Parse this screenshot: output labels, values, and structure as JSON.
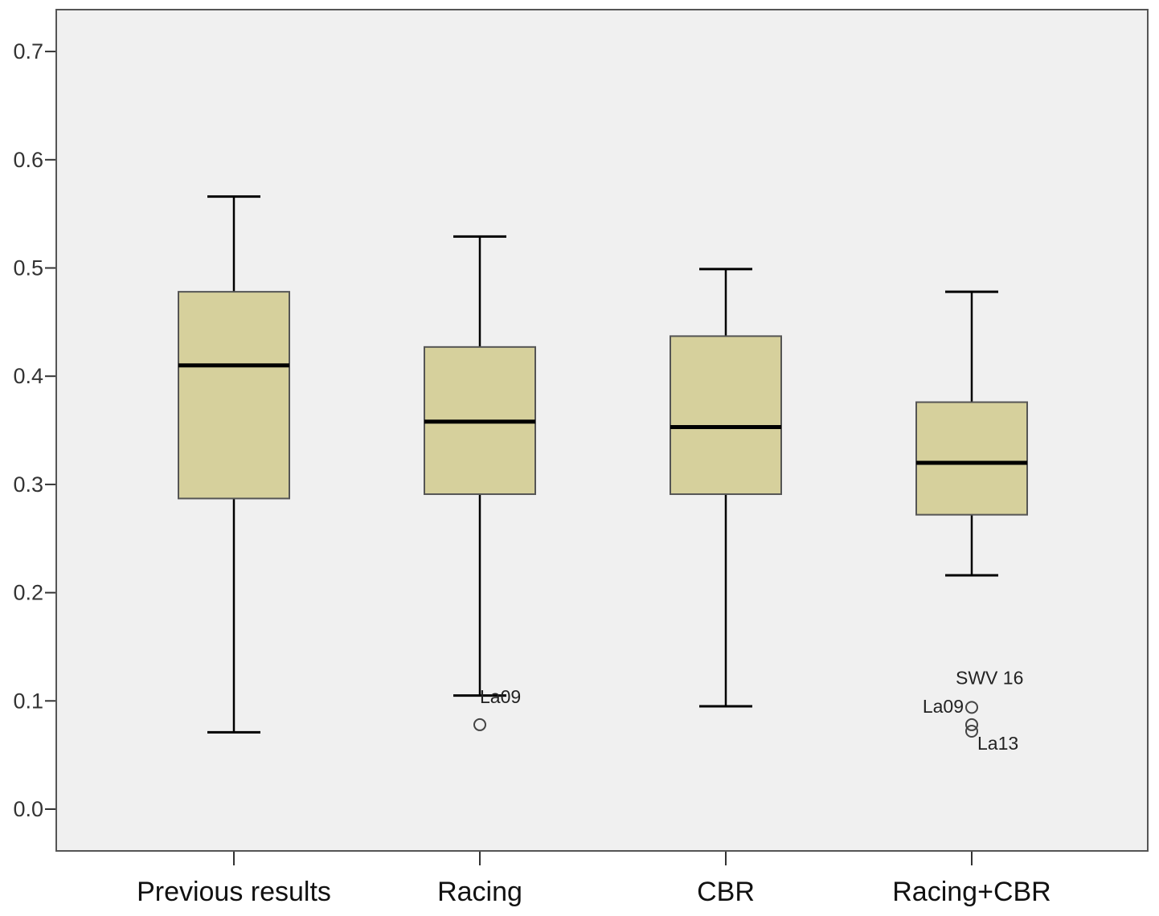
{
  "chart_data": {
    "type": "boxplot",
    "title": "",
    "xlabel": "",
    "ylabel": "",
    "ylim": [
      -0.04,
      0.74
    ],
    "yticks": [
      0.0,
      0.1,
      0.2,
      0.3,
      0.4,
      0.5,
      0.6,
      0.7
    ],
    "ytick_labels": [
      "0.0",
      "0.1",
      "0.2",
      "0.3",
      "0.4",
      "0.5",
      "0.6",
      "0.7"
    ],
    "categories": [
      "Previous results",
      "Racing",
      "CBR",
      "Racing+CBR"
    ],
    "boxes": [
      {
        "name": "Previous results",
        "whisker_low": 0.071,
        "q1": 0.287,
        "median": 0.41,
        "q3": 0.478,
        "whisker_high": 0.566,
        "outliers": []
      },
      {
        "name": "Racing",
        "whisker_low": 0.105,
        "q1": 0.291,
        "median": 0.358,
        "q3": 0.427,
        "whisker_high": 0.529,
        "outliers": [
          {
            "value": 0.078,
            "label": "La09"
          }
        ]
      },
      {
        "name": "CBR",
        "whisker_low": 0.095,
        "q1": 0.291,
        "median": 0.353,
        "q3": 0.437,
        "whisker_high": 0.499,
        "outliers": []
      },
      {
        "name": "Racing+CBR",
        "whisker_low": 0.216,
        "q1": 0.272,
        "median": 0.32,
        "q3": 0.376,
        "whisker_high": 0.478,
        "outliers": [
          {
            "value": 0.094,
            "label": "SWV 16"
          },
          {
            "value": 0.078,
            "label": "La09"
          },
          {
            "value": 0.072,
            "label": "La13"
          }
        ]
      }
    ],
    "colors": {
      "box_fill": "#d6d09c",
      "box_stroke": "#555555",
      "median": "#000000",
      "whisker": "#000000",
      "plot_bg": "#f0f0f0",
      "frame": "#555555",
      "page_bg": "#ffffff"
    },
    "grid": false,
    "legend": "none"
  }
}
